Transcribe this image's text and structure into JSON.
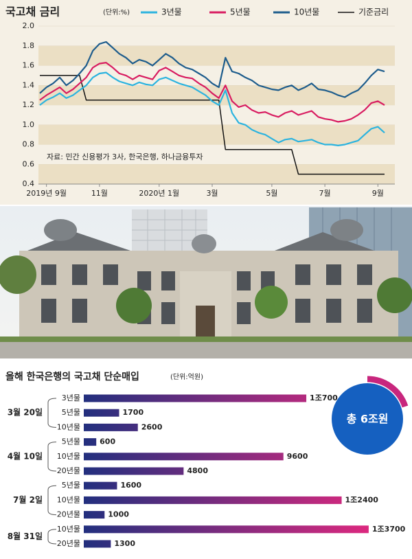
{
  "chart_data": [
    {
      "type": "line",
      "title": "국고채 금리",
      "unit": "(단위:%)",
      "legend": "top",
      "annotation": "자료: 민간 신용평가 3사, 한국은행, 하나금융투자",
      "x": [
        null,
        "2019년 9월",
        null,
        null,
        null,
        null,
        null,
        null,
        null,
        "11월",
        null,
        null,
        null,
        null,
        null,
        null,
        null,
        null,
        "2020년 1월",
        null,
        null,
        null,
        null,
        null,
        null,
        null,
        "3월",
        null,
        null,
        null,
        null,
        null,
        null,
        null,
        null,
        "5월",
        null,
        null,
        null,
        null,
        null,
        null,
        null,
        "7월",
        null,
        null,
        null,
        null,
        null,
        null,
        null,
        "9월",
        null
      ],
      "series": [
        {
          "name": "3년물",
          "color": "#2bb3df",
          "values": [
            1.2,
            1.25,
            1.28,
            1.32,
            1.27,
            1.3,
            1.35,
            1.4,
            1.48,
            1.52,
            1.53,
            1.48,
            1.44,
            1.42,
            1.4,
            1.43,
            1.41,
            1.4,
            1.46,
            1.48,
            1.45,
            1.42,
            1.4,
            1.38,
            1.34,
            1.3,
            1.24,
            1.2,
            1.35,
            1.12,
            1.02,
            1.0,
            0.95,
            0.92,
            0.9,
            0.86,
            0.82,
            0.85,
            0.86,
            0.83,
            0.84,
            0.85,
            0.82,
            0.8,
            0.8,
            0.79,
            0.8,
            0.82,
            0.84,
            0.9,
            0.96,
            0.98,
            0.92
          ]
        },
        {
          "name": "5년물",
          "color": "#d81b60",
          "values": [
            1.25,
            1.3,
            1.34,
            1.38,
            1.32,
            1.36,
            1.42,
            1.48,
            1.58,
            1.62,
            1.63,
            1.58,
            1.52,
            1.5,
            1.46,
            1.5,
            1.48,
            1.46,
            1.55,
            1.58,
            1.54,
            1.5,
            1.48,
            1.47,
            1.42,
            1.38,
            1.32,
            1.27,
            1.4,
            1.24,
            1.18,
            1.2,
            1.15,
            1.12,
            1.13,
            1.1,
            1.08,
            1.12,
            1.14,
            1.1,
            1.12,
            1.14,
            1.08,
            1.06,
            1.05,
            1.03,
            1.04,
            1.06,
            1.1,
            1.15,
            1.22,
            1.24,
            1.2
          ]
        },
        {
          "name": "10년물",
          "color": "#1d5c8c",
          "values": [
            1.32,
            1.38,
            1.42,
            1.48,
            1.4,
            1.45,
            1.52,
            1.6,
            1.75,
            1.82,
            1.84,
            1.78,
            1.72,
            1.68,
            1.62,
            1.66,
            1.64,
            1.6,
            1.66,
            1.72,
            1.68,
            1.62,
            1.58,
            1.56,
            1.52,
            1.48,
            1.42,
            1.38,
            1.68,
            1.54,
            1.52,
            1.48,
            1.45,
            1.4,
            1.38,
            1.36,
            1.35,
            1.38,
            1.4,
            1.35,
            1.38,
            1.42,
            1.36,
            1.35,
            1.33,
            1.3,
            1.28,
            1.32,
            1.35,
            1.42,
            1.5,
            1.56,
            1.54
          ]
        },
        {
          "name": "기준금리",
          "color": "#111111",
          "values": [
            1.5,
            1.5,
            1.5,
            1.5,
            1.5,
            1.5,
            1.5,
            1.25,
            1.25,
            1.25,
            1.25,
            1.25,
            1.25,
            1.25,
            1.25,
            1.25,
            1.25,
            1.25,
            1.25,
            1.25,
            1.25,
            1.25,
            1.25,
            1.25,
            1.25,
            1.25,
            1.25,
            1.25,
            0.75,
            0.75,
            0.75,
            0.75,
            0.75,
            0.75,
            0.75,
            0.75,
            0.75,
            0.75,
            0.75,
            0.5,
            0.5,
            0.5,
            0.5,
            0.5,
            0.5,
            0.5,
            0.5,
            0.5,
            0.5,
            0.5,
            0.5,
            0.5,
            0.5
          ]
        }
      ],
      "ylim": [
        0.4,
        2.0
      ],
      "yticks": [
        0.4,
        0.6,
        0.8,
        {
          "value": 1.0,
          "label": "1.0"
        },
        1.2,
        1.4,
        1.6,
        1.8,
        {
          "value": 2.0,
          "label": "2.0"
        }
      ]
    },
    {
      "type": "bar",
      "orientation": "horizontal",
      "title": "올해 한국은행의 국고채 단순매입",
      "unit": "(단위:억원)",
      "total_label": "총 6조원",
      "colors": [
        "#222f7e",
        "#e0287e"
      ],
      "xlim": [
        0,
        14000
      ],
      "groups": [
        {
          "label": "3월 20일",
          "categories": [
            "3년물",
            "5년물",
            "10년물"
          ],
          "values": [
            10700,
            1700,
            2600
          ],
          "value_labels": [
            "1조700",
            "1700",
            "2600"
          ]
        },
        {
          "label": "4월 10일",
          "categories": [
            "5년물",
            "10년물",
            "20년물"
          ],
          "values": [
            600,
            9600,
            4800
          ],
          "value_labels": [
            "600",
            "9600",
            "4800"
          ]
        },
        {
          "label": "7월 2일",
          "categories": [
            "5년물",
            "10년물",
            "20년물"
          ],
          "values": [
            1600,
            12400,
            1000
          ],
          "value_labels": [
            "1600",
            "1조2400",
            "1000"
          ]
        },
        {
          "label": "8월 31일",
          "categories": [
            "10년물",
            "20년물"
          ],
          "values": [
            13700,
            1300
          ],
          "value_labels": [
            "1조3700",
            "1300"
          ]
        }
      ]
    }
  ]
}
